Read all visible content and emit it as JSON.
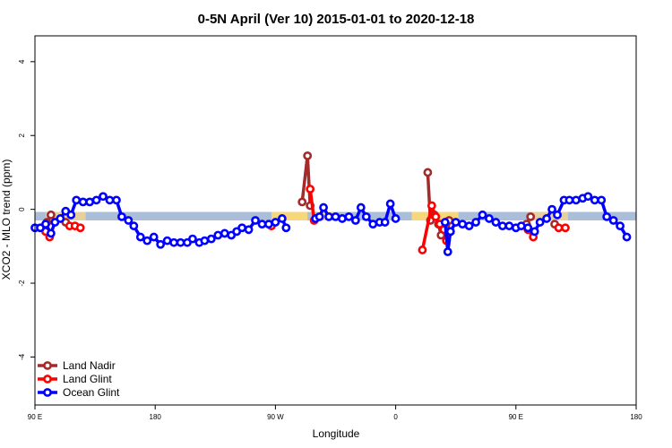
{
  "chart_data": {
    "type": "line",
    "title": "0-5N April (Ver 10)   2015-01-01 to 2020-12-18",
    "xlabel": "Longitude",
    "ylabel": "XCO2 - MLO trend (ppm)",
    "xlim": [
      -180,
      270
    ],
    "ylim": [
      -5.3,
      4.7
    ],
    "x_ticks": [
      {
        "value": -180,
        "label": "90 E"
      },
      {
        "value": -90,
        "label": "180"
      },
      {
        "value": 0,
        "label": "90 W"
      },
      {
        "value": 90,
        "label": "0"
      },
      {
        "value": 180,
        "label": "90 E"
      },
      {
        "value": 270,
        "label": "180"
      }
    ],
    "y_ticks": [
      {
        "value": -4,
        "label": "-4"
      },
      {
        "value": -2,
        "label": "-2"
      },
      {
        "value": 0,
        "label": "0"
      },
      {
        "value": 2,
        "label": "2"
      },
      {
        "value": 4,
        "label": "4"
      }
    ],
    "bands": [
      {
        "x0": -180,
        "x1": 270,
        "y0": -0.3,
        "y1": -0.07,
        "color": "#aabdd9"
      },
      {
        "x0": -172,
        "x1": -142,
        "y0": -0.3,
        "y1": -0.07,
        "color": "#e8cf9e"
      },
      {
        "x0": -3,
        "x1": 24,
        "y0": -0.3,
        "y1": -0.07,
        "color": "#f7d77a"
      },
      {
        "x0": 32,
        "x1": 43,
        "y0": -0.3,
        "y1": -0.07,
        "color": "#f7d77a"
      },
      {
        "x0": 102,
        "x1": 137,
        "y0": -0.3,
        "y1": -0.07,
        "color": "#f7d77a"
      },
      {
        "x0": 190,
        "x1": 219,
        "y0": -0.3,
        "y1": -0.07,
        "color": "#e8cf9e"
      }
    ],
    "legend": {
      "position": "bottom-left"
    },
    "series": [
      {
        "name": "Land Nadir",
        "color": "#a52a2a",
        "segments": [
          [
            [
              -171,
              -0.35
            ],
            [
              -168,
              -0.15
            ]
          ],
          [
            [
              -157,
              -0.35
            ]
          ],
          [
            [
              20,
              0.2
            ],
            [
              24,
              1.45
            ],
            [
              26,
              0.1
            ]
          ],
          [
            [
              114,
              1.0
            ],
            [
              116,
              -0.3
            ],
            [
              119,
              -0.15
            ],
            [
              122,
              -0.4
            ],
            [
              124,
              -0.7
            ],
            [
              127,
              -0.5
            ],
            [
              129,
              -0.65
            ],
            [
              130,
              -0.3
            ]
          ],
          [
            [
              188,
              -0.4
            ],
            [
              191,
              -0.2
            ]
          ],
          [
            [
              209,
              -0.4
            ]
          ]
        ]
      },
      {
        "name": "Land Glint",
        "color": "#ff0000",
        "segments": [
          [
            [
              -172,
              -0.6
            ],
            [
              -169,
              -0.75
            ]
          ],
          [
            [
              -154,
              -0.45
            ],
            [
              -150,
              -0.45
            ],
            [
              -146,
              -0.5
            ]
          ],
          [
            [
              -3,
              -0.45
            ]
          ],
          [
            [
              26,
              0.55
            ],
            [
              29,
              -0.3
            ]
          ],
          [
            [
              110,
              -1.1
            ],
            [
              117,
              0.1
            ],
            [
              120,
              -0.2
            ],
            [
              123,
              -0.4
            ],
            [
              126,
              -0.55
            ],
            [
              128,
              -0.85
            ],
            [
              131,
              -0.6
            ]
          ],
          [
            [
              189,
              -0.55
            ],
            [
              193,
              -0.75
            ]
          ],
          [
            [
              212,
              -0.5
            ],
            [
              217,
              -0.5
            ]
          ]
        ]
      },
      {
        "name": "Ocean Glint",
        "color": "#0000ff",
        "segments": [
          [
            [
              -180,
              -0.5
            ],
            [
              -176,
              -0.5
            ],
            [
              -172,
              -0.4
            ],
            [
              -168,
              -0.65
            ],
            [
              -165,
              -0.35
            ],
            [
              -161,
              -0.25
            ],
            [
              -157,
              -0.05
            ],
            [
              -153,
              -0.15
            ],
            [
              -149,
              0.25
            ],
            [
              -144,
              0.2
            ],
            [
              -139,
              0.2
            ],
            [
              -134,
              0.25
            ],
            [
              -129,
              0.35
            ],
            [
              -124,
              0.25
            ],
            [
              -119,
              0.25
            ],
            [
              -115,
              -0.2
            ],
            [
              -110,
              -0.3
            ],
            [
              -106,
              -0.45
            ],
            [
              -101,
              -0.75
            ],
            [
              -96,
              -0.85
            ],
            [
              -91,
              -0.75
            ],
            [
              -86,
              -0.95
            ],
            [
              -81,
              -0.85
            ],
            [
              -76,
              -0.9
            ],
            [
              -71,
              -0.9
            ],
            [
              -66,
              -0.9
            ],
            [
              -62,
              -0.8
            ],
            [
              -57,
              -0.9
            ],
            [
              -53,
              -0.85
            ],
            [
              -48,
              -0.8
            ],
            [
              -43,
              -0.7
            ],
            [
              -38,
              -0.65
            ],
            [
              -33,
              -0.7
            ],
            [
              -29,
              -0.6
            ],
            [
              -25,
              -0.5
            ],
            [
              -20,
              -0.55
            ],
            [
              -15,
              -0.3
            ],
            [
              -10,
              -0.4
            ],
            [
              -5,
              -0.4
            ],
            [
              0,
              -0.35
            ],
            [
              5,
              -0.25
            ],
            [
              8,
              -0.5
            ]
          ],
          [
            [
              30,
              -0.25
            ],
            [
              33,
              -0.2
            ],
            [
              36,
              0.05
            ],
            [
              40,
              -0.2
            ],
            [
              45,
              -0.2
            ],
            [
              50,
              -0.25
            ],
            [
              55,
              -0.2
            ],
            [
              60,
              -0.3
            ],
            [
              64,
              0.05
            ],
            [
              68,
              -0.2
            ],
            [
              73,
              -0.4
            ],
            [
              78,
              -0.35
            ],
            [
              82,
              -0.35
            ],
            [
              86,
              0.15
            ],
            [
              90,
              -0.25
            ]
          ],
          [
            [
              127,
              -0.35
            ],
            [
              129,
              -1.15
            ],
            [
              131,
              -0.6
            ],
            [
              135,
              -0.35
            ],
            [
              140,
              -0.4
            ],
            [
              145,
              -0.45
            ],
            [
              150,
              -0.35
            ],
            [
              155,
              -0.15
            ],
            [
              160,
              -0.25
            ],
            [
              165,
              -0.35
            ],
            [
              170,
              -0.45
            ],
            [
              175,
              -0.45
            ],
            [
              180,
              -0.5
            ],
            [
              184,
              -0.45
            ],
            [
              189,
              -0.5
            ],
            [
              194,
              -0.6
            ],
            [
              198,
              -0.35
            ],
            [
              203,
              -0.25
            ],
            [
              207,
              0.0
            ],
            [
              211,
              -0.15
            ],
            [
              216,
              0.25
            ],
            [
              220,
              0.25
            ],
            [
              225,
              0.25
            ],
            [
              230,
              0.3
            ],
            [
              234,
              0.35
            ],
            [
              239,
              0.25
            ],
            [
              244,
              0.25
            ],
            [
              248,
              -0.2
            ],
            [
              253,
              -0.3
            ],
            [
              258,
              -0.45
            ],
            [
              263,
              -0.75
            ]
          ]
        ]
      }
    ]
  }
}
